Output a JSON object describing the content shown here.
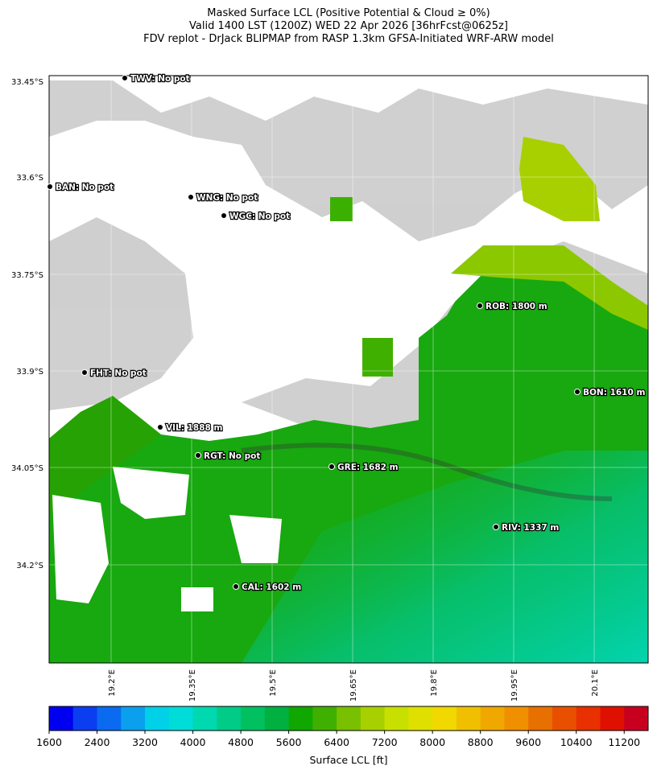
{
  "title_lines": [
    "Masked Surface LCL (Positive Potential & Cloud ≥ 0%)",
    "Valid 1400 LST (1200Z) WED 22 Apr 2026 [36hrFcst@0625z]",
    "FDV replot - DrJack BLIPMAP from RASP 1.3km GFSA-Initiated WRF-ARW model"
  ],
  "map": {
    "lat_labels": [
      "33.45°S",
      "33.6°S",
      "33.75°S",
      "33.9°S",
      "34.05°S",
      "34.2°S"
    ],
    "lon_labels": [
      "19.2°E",
      "19.35°E",
      "19.5°E",
      "19.65°E",
      "19.8°E",
      "19.95°E",
      "20.1°E"
    ],
    "stations": [
      {
        "label": "TWV: No pot"
      },
      {
        "label": "BAN: No pot"
      },
      {
        "label": "WNG: No pot"
      },
      {
        "label": "WGC: No pot"
      },
      {
        "label": "FHT: No pot"
      },
      {
        "label": "VIL: 1888 m"
      },
      {
        "label": "RGT: No pot"
      },
      {
        "label": "ROB: 1800 m"
      },
      {
        "label": "BON: 1610 m"
      },
      {
        "label": "GRE: 1682 m"
      },
      {
        "label": "RIV: 1337 m"
      },
      {
        "label": "CAL: 1602 m"
      }
    ]
  },
  "colorbar": {
    "label": "Surface LCL [ft]",
    "range": [
      1600,
      11600
    ],
    "ticks": [
      1600,
      2400,
      3200,
      4000,
      4800,
      5600,
      6400,
      7200,
      8000,
      8800,
      9600,
      10400,
      11200
    ],
    "colors": [
      "#0000f0",
      "#0a3ef0",
      "#0a6af0",
      "#0aa0ee",
      "#00d0e8",
      "#00dcd8",
      "#00d8b0",
      "#00cc88",
      "#00c060",
      "#00b040",
      "#10a800",
      "#40b000",
      "#78c000",
      "#a8d000",
      "#c8e000",
      "#e0e000",
      "#f0d800",
      "#f0c000",
      "#f0a800",
      "#f09000",
      "#e87000",
      "#e85000",
      "#e83000",
      "#e01000",
      "#c80020"
    ]
  }
}
